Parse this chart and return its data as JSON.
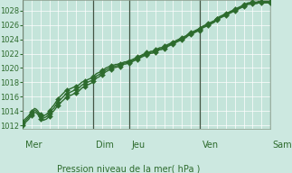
{
  "xlabel": "Pression niveau de la mer( hPa )",
  "background_color": "#cce8e0",
  "plot_bg_color": "#c4e4da",
  "grid_color": "#b0d8d0",
  "line_color": "#2d6b2d",
  "ylim": [
    1011.5,
    1029.5
  ],
  "yticks": [
    1012,
    1014,
    1016,
    1018,
    1020,
    1022,
    1024,
    1026,
    1028
  ],
  "day_labels": [
    "Mer",
    "Dim",
    "Jeu",
    "Ven",
    "Sam"
  ],
  "day_positions": [
    0,
    48,
    72,
    120,
    168
  ],
  "num_points": 169,
  "marker_indices": [
    0,
    6,
    12,
    18,
    24,
    30,
    36,
    42,
    48,
    54,
    60,
    66,
    72,
    78,
    84,
    90,
    96,
    102,
    108,
    114,
    120,
    126,
    132,
    138,
    144,
    150,
    156,
    162,
    168
  ],
  "line_base": [
    1012.3,
    1012.5,
    1012.7,
    1012.9,
    1013.1,
    1013.4,
    1013.7,
    1013.9,
    1014.1,
    1014.0,
    1013.8,
    1013.5,
    1013.2,
    1013.0,
    1013.0,
    1013.1,
    1013.2,
    1013.4,
    1013.6,
    1013.9,
    1014.2,
    1014.4,
    1014.7,
    1015.0,
    1015.2,
    1015.5,
    1015.7,
    1015.9,
    1016.1,
    1016.3,
    1016.4,
    1016.5,
    1016.6,
    1016.7,
    1016.8,
    1016.9,
    1017.0,
    1017.1,
    1017.2,
    1017.4,
    1017.6,
    1017.7,
    1017.8,
    1017.9,
    1018.0,
    1018.1,
    1018.2,
    1018.3,
    1018.5,
    1018.7,
    1018.9,
    1019.0,
    1019.1,
    1019.3,
    1019.4,
    1019.5,
    1019.7,
    1019.8,
    1019.9,
    1020.0,
    1020.1,
    1020.2,
    1020.2,
    1020.3,
    1020.3,
    1020.4,
    1020.4,
    1020.5,
    1020.6,
    1020.7,
    1020.7,
    1020.8,
    1020.8,
    1020.9,
    1021.0,
    1021.1,
    1021.2,
    1021.3,
    1021.4,
    1021.5,
    1021.6,
    1021.7,
    1021.8,
    1021.9,
    1022.0,
    1022.0,
    1022.1,
    1022.2,
    1022.2,
    1022.3,
    1022.4,
    1022.5,
    1022.6,
    1022.7,
    1022.7,
    1022.8,
    1022.9,
    1023.0,
    1023.1,
    1023.2,
    1023.3,
    1023.4,
    1023.5,
    1023.6,
    1023.7,
    1023.8,
    1023.9,
    1024.0,
    1024.1,
    1024.2,
    1024.3,
    1024.4,
    1024.6,
    1024.7,
    1024.8,
    1024.9,
    1025.0,
    1025.1,
    1025.2,
    1025.3,
    1025.4,
    1025.6,
    1025.7,
    1025.8,
    1025.9,
    1026.0,
    1026.1,
    1026.2,
    1026.3,
    1026.4,
    1026.5,
    1026.7,
    1026.8,
    1027.0,
    1027.1,
    1027.2,
    1027.3,
    1027.4,
    1027.5,
    1027.6,
    1027.7,
    1027.8,
    1027.9,
    1028.0,
    1028.1,
    1028.2,
    1028.3,
    1028.4,
    1028.5,
    1028.6,
    1028.7,
    1028.8,
    1028.9,
    1029.0,
    1029.0,
    1029.1,
    1029.1,
    1029.1,
    1029.1,
    1029.1,
    1029.2,
    1029.2,
    1029.2,
    1029.2,
    1029.2,
    1029.2,
    1029.2,
    1029.2,
    1029.2,
    1029.2,
    1029.2,
    1029.2,
    1029.2,
    1029.2
  ],
  "offsets_line1": [
    0.0,
    0.1,
    0.2,
    0.3,
    0.4,
    0.3,
    0.2,
    0.1,
    0.0,
    -0.1,
    -0.2,
    -0.2,
    -0.2,
    -0.1,
    0.0,
    0.0,
    0.0,
    0.1,
    0.1,
    0.1,
    0.1,
    0.1,
    0.1,
    0.1,
    0.1,
    0.1,
    0.1,
    0.1,
    0.1,
    0.1,
    0.1,
    0.1,
    0.1,
    0.1,
    0.1,
    0.1,
    0.1,
    0.1,
    0.1,
    0.1,
    0.1,
    0.1,
    0.1,
    0.1,
    0.1,
    0.1,
    0.1,
    0.1,
    0.1,
    0.1,
    0.1,
    0.1,
    0.1,
    0.1,
    0.1,
    0.1,
    0.1,
    0.1,
    0.1,
    0.1,
    0.1,
    0.1,
    0.1,
    0.1,
    0.1,
    0.1,
    0.1,
    0.1,
    0.1,
    0.1,
    0.1,
    0.1,
    0.1,
    0.1,
    0.1,
    0.1,
    0.1,
    0.1,
    0.1,
    0.1,
    0.1,
    0.1,
    0.1,
    0.1,
    0.1,
    0.1,
    0.1,
    0.1,
    0.1,
    0.1,
    0.1,
    0.1,
    0.1,
    0.1,
    0.1,
    0.1,
    0.1,
    0.1,
    0.1,
    0.1,
    0.1,
    0.1,
    0.1,
    0.1,
    0.1,
    0.1,
    0.1,
    0.1,
    0.1,
    0.1,
    0.1,
    0.1,
    0.1,
    0.1,
    0.1,
    0.1,
    0.1,
    0.1,
    0.1,
    0.1,
    0.1,
    0.1,
    0.1,
    0.1,
    0.1,
    0.1,
    0.1,
    0.1,
    0.1,
    0.1,
    0.1,
    0.1,
    0.1,
    0.1,
    0.1,
    0.1,
    0.1,
    0.1,
    0.1,
    0.1,
    0.1,
    0.1,
    0.1,
    0.1,
    0.1,
    0.1,
    0.1,
    0.1,
    0.1,
    0.1,
    0.1,
    0.1,
    0.1,
    0.1,
    0.1,
    0.1,
    0.1,
    0.1,
    0.1,
    0.1,
    0.1,
    0.1,
    0.1,
    0.1,
    0.1,
    0.1,
    0.1,
    0.1,
    0.1,
    0.1,
    0.1,
    0.1,
    0.1
  ],
  "offsets_line3": [
    0.0,
    -0.1,
    -0.2,
    -0.3,
    -0.4,
    -0.3,
    -0.2,
    -0.1,
    0.0,
    0.1,
    0.2,
    0.2,
    0.2,
    0.1,
    0.0,
    0.0,
    0.0,
    -0.1,
    -0.1,
    -0.1,
    -0.1,
    -0.1,
    -0.1,
    -0.1,
    -0.1,
    -0.1,
    -0.1,
    -0.1,
    -0.1,
    -0.1,
    -0.1,
    -0.1,
    -0.1,
    -0.1,
    -0.1,
    -0.1,
    -0.1,
    -0.1,
    -0.1,
    -0.1,
    -0.1,
    -0.1,
    -0.1,
    -0.1,
    -0.1,
    -0.1,
    -0.1,
    -0.1,
    -0.1,
    -0.1,
    -0.1,
    -0.1,
    -0.1,
    -0.1,
    -0.1,
    -0.1,
    -0.1,
    -0.1,
    -0.1,
    -0.1,
    -0.1,
    -0.1,
    -0.1,
    -0.1,
    -0.1,
    -0.1,
    -0.1,
    -0.1,
    -0.1,
    -0.1,
    -0.1,
    -0.1,
    -0.1,
    -0.1,
    -0.1,
    -0.1,
    -0.1,
    -0.1,
    -0.1,
    -0.1,
    -0.1,
    -0.1,
    -0.1,
    -0.1,
    -0.1,
    -0.1,
    -0.1,
    -0.1,
    -0.1,
    -0.1,
    -0.1,
    -0.1,
    -0.1,
    -0.1,
    -0.1,
    -0.1,
    -0.1,
    -0.1,
    -0.1,
    -0.1,
    -0.1,
    -0.1,
    -0.1,
    -0.1,
    -0.1,
    -0.1,
    -0.1,
    -0.1,
    -0.1,
    -0.1,
    -0.1,
    -0.1,
    -0.1,
    -0.1,
    -0.1,
    -0.1,
    -0.1,
    -0.1,
    -0.1,
    -0.1,
    -0.1,
    -0.1,
    -0.1,
    -0.1,
    -0.1,
    -0.1,
    -0.1,
    -0.1,
    -0.1,
    -0.1,
    -0.1,
    -0.1,
    -0.1,
    -0.1,
    -0.1,
    -0.1,
    -0.1,
    -0.1,
    -0.1,
    -0.1,
    -0.1,
    -0.1,
    -0.1,
    -0.1,
    -0.1,
    -0.1,
    -0.1,
    -0.1,
    -0.1,
    -0.1,
    -0.1,
    -0.1,
    -0.1,
    -0.1,
    -0.1,
    -0.1,
    -0.1,
    -0.1,
    -0.1,
    -0.1,
    -0.1,
    -0.1,
    -0.1,
    -0.1,
    -0.1,
    -0.1,
    -0.1,
    -0.1,
    -0.1,
    -0.1,
    -0.1,
    -0.1,
    -0.1
  ],
  "marker_size": 3,
  "linewidth": 1.0
}
